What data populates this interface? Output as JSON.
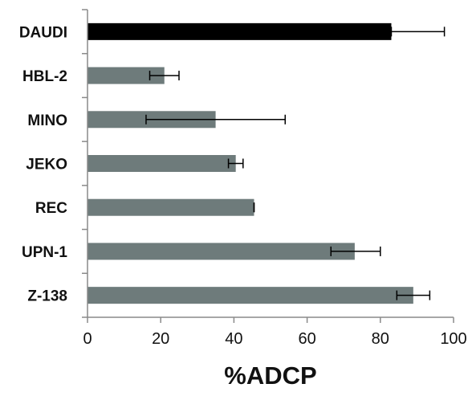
{
  "chart_data": {
    "type": "bar",
    "orientation": "horizontal",
    "categories": [
      "DAUDI",
      "HBL-2",
      "MINO",
      "JEKO",
      "REC",
      "UPN-1",
      "Z-138"
    ],
    "values": [
      83,
      21,
      35,
      40.5,
      45.5,
      73,
      89
    ],
    "error_low": [
      83,
      17,
      16,
      38.5,
      45.5,
      66.5,
      84.5
    ],
    "error_high": [
      97.5,
      25,
      54,
      42.5,
      45.5,
      80,
      93.5
    ],
    "bar_colors": [
      "#000000",
      "#6e7b7b",
      "#6e7b7b",
      "#6e7b7b",
      "#6e7b7b",
      "#6e7b7b",
      "#6e7b7b"
    ],
    "xlabel": "%ADCP",
    "xlim": [
      0,
      100
    ],
    "xticks": [
      "0",
      "20",
      "40",
      "60",
      "80",
      "100"
    ],
    "grid": false
  }
}
